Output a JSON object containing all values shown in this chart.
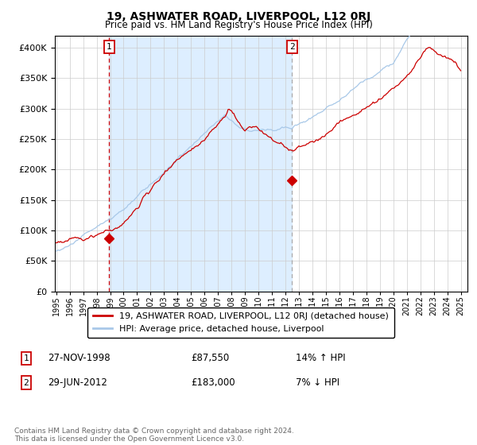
{
  "title": "19, ASHWATER ROAD, LIVERPOOL, L12 0RJ",
  "subtitle": "Price paid vs. HM Land Registry's House Price Index (HPI)",
  "sale1_date_num": 1998.92,
  "sale1_price": 87550,
  "sale1_label": "1",
  "sale1_text": "27-NOV-1998",
  "sale1_price_str": "£87,550",
  "sale1_hpi": "14% ↑ HPI",
  "sale2_date_num": 2012.49,
  "sale2_price": 183000,
  "sale2_label": "2",
  "sale2_text": "29-JUN-2012",
  "sale2_price_str": "£183,000",
  "sale2_hpi": "7% ↓ HPI",
  "legend_line1": "19, ASHWATER ROAD, LIVERPOOL, L12 0RJ (detached house)",
  "legend_line2": "HPI: Average price, detached house, Liverpool",
  "footnote": "Contains HM Land Registry data © Crown copyright and database right 2024.\nThis data is licensed under the Open Government Licence v3.0.",
  "hpi_color": "#a8c8e8",
  "price_color": "#cc0000",
  "bg_shaded_color": "#ddeeff",
  "vline1_color": "#cc0000",
  "vline2_color": "#aaaaaa",
  "marker_color": "#cc0000",
  "box_color": "#cc0000",
  "ylim_min": 0,
  "ylim_max": 420000,
  "yticks": [
    0,
    50000,
    100000,
    150000,
    200000,
    250000,
    300000,
    350000,
    400000
  ],
  "xlim_start": 1994.9,
  "xlim_end": 2025.5
}
